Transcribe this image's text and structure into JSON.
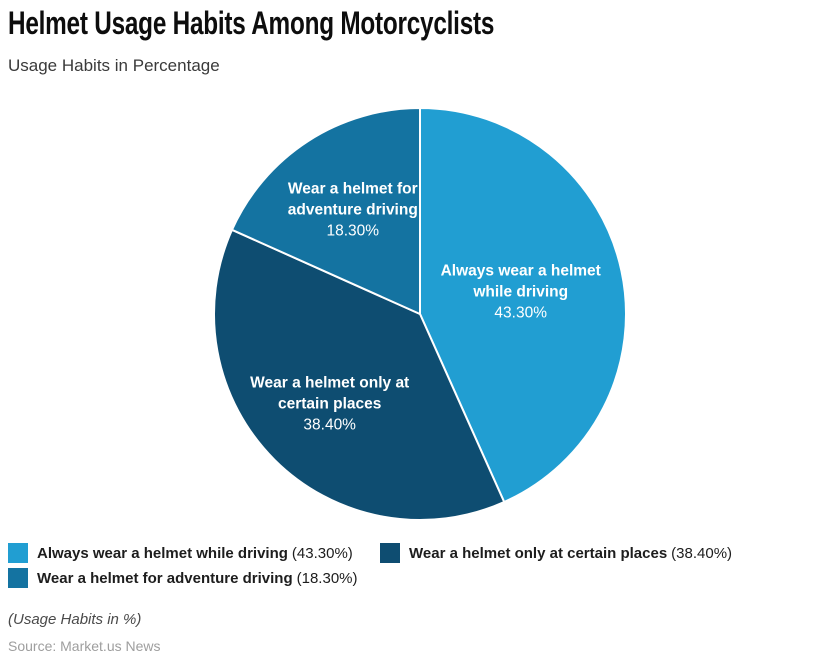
{
  "header": {
    "title": "Helmet Usage Habits Among Motorcyclists",
    "subtitle": "Usage Habits in Percentage"
  },
  "chart_data": {
    "type": "pie",
    "title": "Helmet Usage Habits Among Motorcyclists",
    "subtitle": "Usage Habits in Percentage",
    "unit": "%",
    "direction": "clockwise",
    "start_angle_deg": 0,
    "legend_position": "bottom",
    "slices": [
      {
        "label": "Always wear a helmet while driving",
        "value": 43.3,
        "pct_label": "43.30%",
        "legend_pct": "(43.30%)",
        "color": "#219ed2",
        "label_lines": [
          "Always wear a helmet",
          "while driving"
        ]
      },
      {
        "label": "Wear a helmet only at certain places",
        "value": 38.4,
        "pct_label": "38.40%",
        "legend_pct": "(38.40%)",
        "color": "#0e4d71",
        "label_lines": [
          "Wear a helmet only at",
          "certain places"
        ]
      },
      {
        "label": "Wear a helmet for adventure driving",
        "value": 18.3,
        "pct_label": "18.30%",
        "legend_pct": "(18.30%)",
        "color": "#1473a1",
        "label_lines": [
          "Wear a helmet for",
          "adventure driving"
        ]
      }
    ],
    "slice_border_color": "#ffffff",
    "text_color_on_slices": "#ffffff"
  },
  "footer": {
    "note": "(Usage Habits in %)",
    "source": "Source: Market.us News"
  }
}
